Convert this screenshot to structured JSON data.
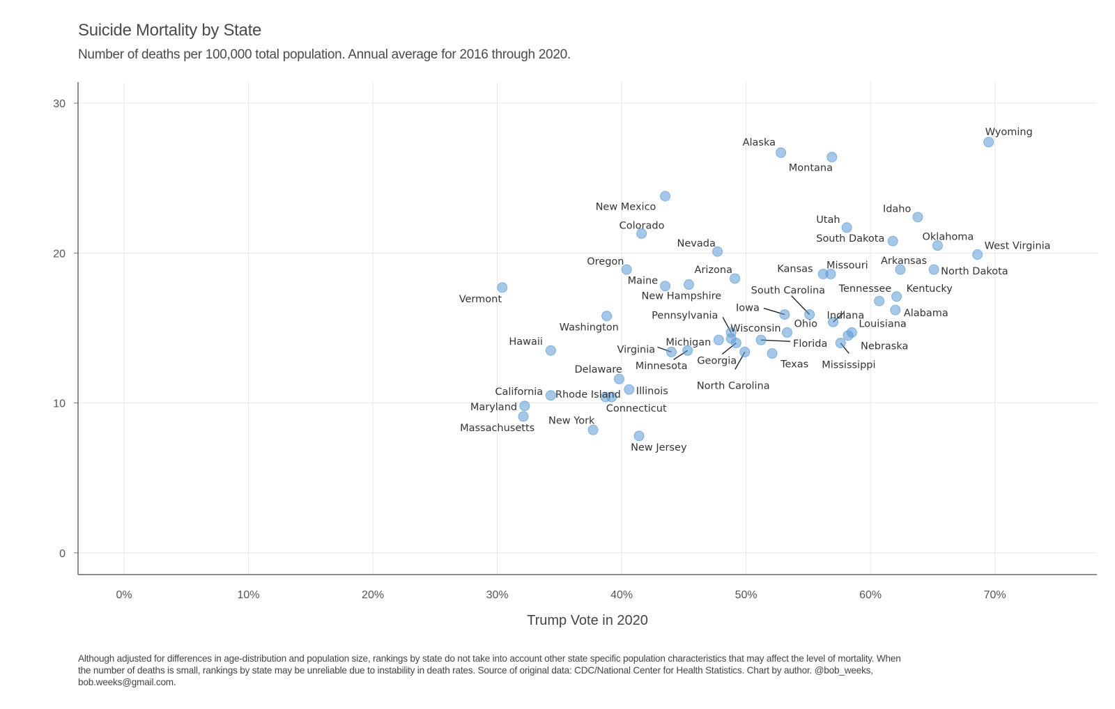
{
  "title": "Suicide Mortality by State",
  "subtitle": "Number of deaths per 100,000 total population. Annual average for 2016 through 2020.",
  "caption": "Although adjusted for differences in age-distribution and population size, rankings by state do not take into account other state specific population characteristics that may affect the level of mortality. When the number of deaths is small, rankings by state may be unreliable due to instability in death rates. Source of original data: CDC/National Center for Health Statistics. Chart by author. @bob_weeks, bob.weeks@gmail.com.",
  "chart_data": {
    "type": "scatter",
    "title": "Suicide Mortality by State",
    "xlabel": "Trump Vote in 2020",
    "ylabel": "",
    "xlim": [
      -3.7,
      78.2
    ],
    "ylim": [
      -1.45,
      31.4
    ],
    "x_ticks": [
      0,
      10,
      20,
      30,
      40,
      50,
      60,
      70
    ],
    "x_tick_labels": [
      "0%",
      "10%",
      "20%",
      "30%",
      "40%",
      "50%",
      "60%",
      "70%"
    ],
    "y_ticks": [
      0,
      10,
      20,
      30
    ],
    "y_tick_labels": [
      "0",
      "10",
      "20",
      "30"
    ],
    "grid": true,
    "point_color": "#5b9bd5",
    "points": [
      {
        "label": "Wyoming",
        "x": 69.5,
        "y": 27.4
      },
      {
        "label": "Alaska",
        "x": 52.8,
        "y": 26.7
      },
      {
        "label": "Montana",
        "x": 56.9,
        "y": 26.4
      },
      {
        "label": "New Mexico",
        "x": 43.5,
        "y": 23.8
      },
      {
        "label": "Idaho",
        "x": 63.8,
        "y": 22.4
      },
      {
        "label": "Utah",
        "x": 58.1,
        "y": 21.7
      },
      {
        "label": "Colorado",
        "x": 41.6,
        "y": 21.3
      },
      {
        "label": "South Dakota",
        "x": 61.8,
        "y": 20.8
      },
      {
        "label": "Oklahoma",
        "x": 65.4,
        "y": 20.5
      },
      {
        "label": "Nevada",
        "x": 47.7,
        "y": 20.1
      },
      {
        "label": "West Virginia",
        "x": 68.6,
        "y": 19.9
      },
      {
        "label": "Oregon",
        "x": 40.4,
        "y": 18.9
      },
      {
        "label": "Arkansas",
        "x": 62.4,
        "y": 18.9
      },
      {
        "label": "North Dakota",
        "x": 65.1,
        "y": 18.9
      },
      {
        "label": "Kansas",
        "x": 56.2,
        "y": 18.6
      },
      {
        "label": "Missouri",
        "x": 56.8,
        "y": 18.6
      },
      {
        "label": "Arizona",
        "x": 49.1,
        "y": 18.3
      },
      {
        "label": "Maine",
        "x": 43.5,
        "y": 17.8
      },
      {
        "label": "New Hampshire",
        "x": 45.4,
        "y": 17.9
      },
      {
        "label": "Vermont",
        "x": 30.4,
        "y": 17.7
      },
      {
        "label": "Kentucky",
        "x": 62.1,
        "y": 17.1
      },
      {
        "label": "Tennessee",
        "x": 60.7,
        "y": 16.8
      },
      {
        "label": "Alabama",
        "x": 62.0,
        "y": 16.2
      },
      {
        "label": "Iowa",
        "x": 53.1,
        "y": 15.9
      },
      {
        "label": "South Carolina",
        "x": 55.1,
        "y": 15.9
      },
      {
        "label": "Washington",
        "x": 38.8,
        "y": 15.8
      },
      {
        "label": "Indiana",
        "x": 57.0,
        "y": 15.4
      },
      {
        "label": "Ohio",
        "x": 53.3,
        "y": 14.7
      },
      {
        "label": "Pennsylvania",
        "x": 48.8,
        "y": 14.7
      },
      {
        "label": "Louisiana",
        "x": 58.5,
        "y": 14.7
      },
      {
        "label": "Nebraska",
        "x": 58.2,
        "y": 14.5
      },
      {
        "label": "Wisconsin",
        "x": 48.8,
        "y": 14.3
      },
      {
        "label": "Michigan",
        "x": 47.8,
        "y": 14.2
      },
      {
        "label": "Florida",
        "x": 51.2,
        "y": 14.2
      },
      {
        "label": "Georgia",
        "x": 49.2,
        "y": 14.0
      },
      {
        "label": "Mississippi",
        "x": 57.6,
        "y": 14.0
      },
      {
        "label": "Hawaii",
        "x": 34.3,
        "y": 13.5
      },
      {
        "label": "Minnesota",
        "x": 45.3,
        "y": 13.5
      },
      {
        "label": "Virginia",
        "x": 44.0,
        "y": 13.4
      },
      {
        "label": "North Carolina",
        "x": 49.9,
        "y": 13.4
      },
      {
        "label": "Texas",
        "x": 52.1,
        "y": 13.3
      },
      {
        "label": "Delaware",
        "x": 39.8,
        "y": 11.6
      },
      {
        "label": "Illinois",
        "x": 40.6,
        "y": 10.9
      },
      {
        "label": "California",
        "x": 34.3,
        "y": 10.5
      },
      {
        "label": "Rhode Island",
        "x": 38.7,
        "y": 10.4
      },
      {
        "label": "Connecticut",
        "x": 39.2,
        "y": 10.4
      },
      {
        "label": "Maryland",
        "x": 32.2,
        "y": 9.8
      },
      {
        "label": "Massachusetts",
        "x": 32.1,
        "y": 9.1
      },
      {
        "label": "New York",
        "x": 37.7,
        "y": 8.2
      },
      {
        "label": "New Jersey",
        "x": 41.4,
        "y": 7.8
      }
    ]
  }
}
